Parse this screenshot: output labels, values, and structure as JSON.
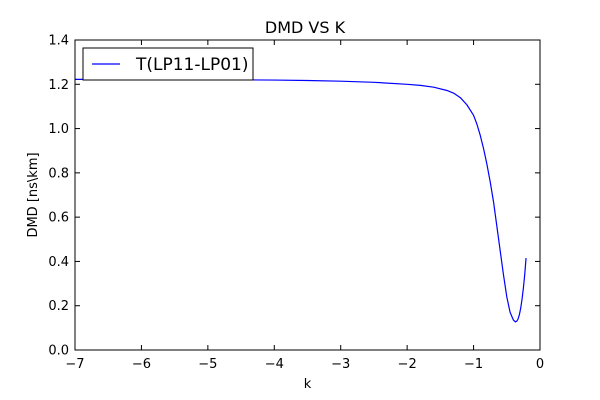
{
  "chart_data": {
    "type": "line",
    "title": "DMD VS K",
    "xlabel": "k",
    "ylabel": "DMD [ns\\km]",
    "xlim": [
      -7,
      0
    ],
    "ylim": [
      0,
      1.4
    ],
    "xticks": [
      -7,
      -6,
      -5,
      -4,
      -3,
      -2,
      -1,
      0
    ],
    "yticks": [
      0.0,
      0.2,
      0.4,
      0.6,
      0.8,
      1.0,
      1.2,
      1.4
    ],
    "xtick_labels": [
      "−7",
      "−6",
      "−5",
      "−4",
      "−3",
      "−2",
      "−1",
      "0"
    ],
    "ytick_labels": [
      "0.0",
      "0.2",
      "0.4",
      "0.6",
      "0.8",
      "1.0",
      "1.2",
      "1.4"
    ],
    "grid": false,
    "legend_position": "top-left",
    "series": [
      {
        "name": "T(LP11-LP01)",
        "color": "#0000ff",
        "x": [
          -7.0,
          -6.5,
          -6.0,
          -5.5,
          -5.0,
          -4.5,
          -4.0,
          -3.5,
          -3.0,
          -2.5,
          -2.0,
          -1.8,
          -1.6,
          -1.4,
          -1.3,
          -1.2,
          -1.1,
          -1.0,
          -0.95,
          -0.9,
          -0.85,
          -0.8,
          -0.75,
          -0.7,
          -0.65,
          -0.6,
          -0.55,
          -0.5,
          -0.45,
          -0.4,
          -0.37,
          -0.35,
          -0.33,
          -0.31,
          -0.29,
          -0.27,
          -0.25,
          -0.23,
          -0.21
        ],
        "y": [
          1.222,
          1.222,
          1.222,
          1.221,
          1.221,
          1.22,
          1.219,
          1.217,
          1.214,
          1.209,
          1.2,
          1.195,
          1.187,
          1.172,
          1.16,
          1.14,
          1.107,
          1.06,
          1.02,
          0.97,
          0.91,
          0.84,
          0.76,
          0.67,
          0.56,
          0.45,
          0.34,
          0.24,
          0.17,
          0.135,
          0.127,
          0.13,
          0.14,
          0.16,
          0.19,
          0.23,
          0.28,
          0.34,
          0.415
        ]
      }
    ]
  }
}
